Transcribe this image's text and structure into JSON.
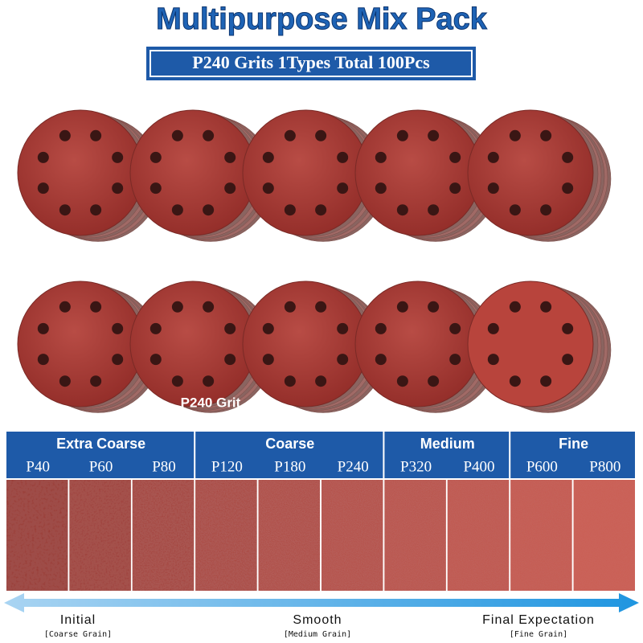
{
  "header": {
    "title": "Multipurpose Mix Pack",
    "subtitle": "P240 Grits 1Types Total 100Pcs"
  },
  "disc_label": "P240 Grit",
  "grit_groups": [
    {
      "name": "Extra Coarse",
      "grits": [
        "P40",
        "P60",
        "P80"
      ]
    },
    {
      "name": "Coarse",
      "grits": [
        "P120",
        "P180",
        "P240"
      ]
    },
    {
      "name": "Medium",
      "grits": [
        "P320",
        "P400"
      ]
    },
    {
      "name": "Fine",
      "grits": [
        "P600",
        "P800"
      ]
    }
  ],
  "progress": [
    {
      "label": "Initial",
      "note": "[Coarse Grain]"
    },
    {
      "label": "Smooth",
      "note": "[Medium Grain]"
    },
    {
      "label": "Final Expectation",
      "note": "[Fine Grain]"
    }
  ]
}
